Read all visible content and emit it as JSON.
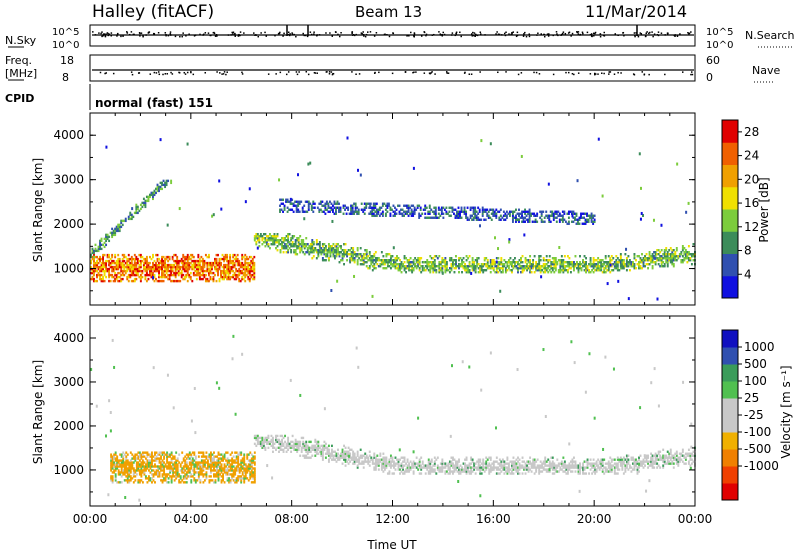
{
  "header": {
    "station": "Halley (fitACF)",
    "beam": "Beam 13",
    "date": "11/Mar/2014"
  },
  "aux_panels": {
    "nsky_label": "N.Sky",
    "nsearch_label": "N.Search",
    "noise_ticks_left": [
      "10^5",
      "10^0"
    ],
    "noise_ticks_right": [
      "10^5",
      "10^0"
    ],
    "freq_label": "Freq.",
    "freq_unit": "[MHz]",
    "freq_ticks": [
      "18",
      "8"
    ],
    "nave_label": "Nave",
    "nave_ticks": [
      "60",
      "0"
    ],
    "cpid_label": "CPID",
    "cpid_value": "normal (fast) 151"
  },
  "colors": {
    "power": [
      "#1010e0",
      "#3050b0",
      "#3c8c5a",
      "#7ccc3c",
      "#f0e000",
      "#f0a000",
      "#f06000",
      "#e00000"
    ],
    "velocity": [
      "#e00000",
      "#f04000",
      "#f08000",
      "#f0b000",
      "#c8c8c8",
      "#c8c8c8",
      "#50c050",
      "#3a9c5a",
      "#3050b0",
      "#1010c0"
    ]
  },
  "chart_data": [
    {
      "type": "heatmap",
      "title": "",
      "ylabel": "Slant Range [km]",
      "xlabel": "",
      "x_ticks": [
        "00:00",
        "04:00",
        "08:00",
        "12:00",
        "16:00",
        "20:00",
        "00:00"
      ],
      "y_ticks": [
        1000,
        2000,
        3000,
        4000
      ],
      "ylim": [
        180,
        4500
      ],
      "xlim_hours": [
        0,
        24
      ],
      "colorbar": {
        "label": "Power [dB]",
        "ticks": [
          "28",
          "24",
          "20",
          "16",
          "12",
          "8",
          "4"
        ],
        "range": [
          0,
          30
        ]
      },
      "features": [
        {
          "name": "ground scatter evening",
          "t_hours": [
            0.0,
            6.5
          ],
          "range_km": [
            700,
            1300
          ],
          "value_db": 28
        },
        {
          "name": "ionospheric echo morning",
          "t_hours": [
            0.0,
            3.2
          ],
          "range_km": [
            1200,
            3000
          ],
          "value_db": 10
        },
        {
          "name": "main band",
          "t_hours": [
            6.5,
            24.0
          ],
          "range_km": [
            900,
            1800
          ],
          "value_db": 12
        },
        {
          "name": "upper band",
          "t_hours": [
            7.5,
            20.0
          ],
          "range_km": [
            1900,
            2600
          ],
          "value_db": 6
        }
      ]
    },
    {
      "type": "heatmap",
      "title": "",
      "ylabel": "Slant Range [km]",
      "xlabel": "Time UT",
      "x_ticks": [
        "00:00",
        "04:00",
        "08:00",
        "12:00",
        "16:00",
        "20:00",
        "00:00"
      ],
      "y_ticks": [
        1000,
        2000,
        3000,
        4000
      ],
      "ylim": [
        180,
        4500
      ],
      "xlim_hours": [
        0,
        24
      ],
      "colorbar": {
        "label": "Velocity [m s⁻¹]",
        "ticks": [
          "1000",
          "500",
          "100",
          "25",
          "-25",
          "-100",
          "-500",
          "-1000"
        ],
        "range": [
          -1000,
          1000
        ]
      },
      "features": [
        {
          "name": "negative velocity cluster",
          "t_hours": [
            0.8,
            6.5
          ],
          "range_km": [
            700,
            1400
          ],
          "value_ms": -100
        },
        {
          "name": "near-zero band",
          "t_hours": [
            6.5,
            24.0
          ],
          "range_km": [
            900,
            1800
          ],
          "value_ms": 0
        }
      ]
    }
  ]
}
